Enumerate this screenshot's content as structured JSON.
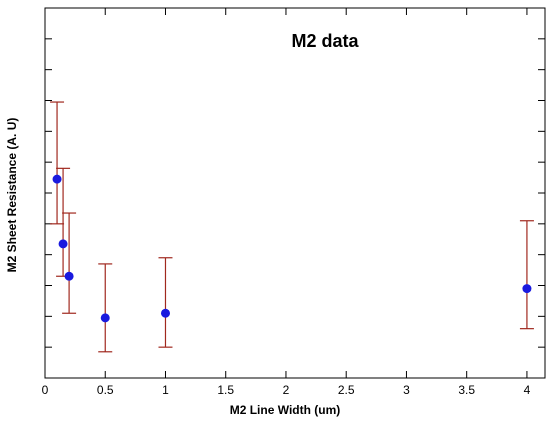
{
  "chart_data": {
    "type": "scatter",
    "title": "M2 data",
    "xlabel": "M2 Line Width (um)",
    "ylabel": "M2 Sheet Resistance (A. U)",
    "xlim": [
      0,
      4.15
    ],
    "ylim": [
      0,
      12
    ],
    "x_ticks": [
      0,
      0.5,
      1,
      1.5,
      2,
      2.5,
      3,
      3.5,
      4
    ],
    "x_tick_labels": [
      "0",
      "0.5",
      "1",
      "1.5",
      "2",
      "2.5",
      "3",
      "3.5",
      "4"
    ],
    "y_ticks": [
      1,
      2,
      3,
      4,
      5,
      6,
      7,
      8,
      9,
      10,
      11
    ],
    "grid": false,
    "colors": {
      "marker": "#1a1adf",
      "error_bar": "#a0281e",
      "axis": "#000000"
    },
    "points": [
      {
        "x": 0.1,
        "y": 6.45,
        "err_low": 5.0,
        "err_high": 8.95
      },
      {
        "x": 0.15,
        "y": 4.35,
        "err_low": 3.3,
        "err_high": 6.8
      },
      {
        "x": 0.2,
        "y": 3.3,
        "err_low": 2.1,
        "err_high": 5.35
      },
      {
        "x": 0.5,
        "y": 1.95,
        "err_low": 0.85,
        "err_high": 3.7
      },
      {
        "x": 1.0,
        "y": 2.1,
        "err_low": 1.0,
        "err_high": 3.9
      },
      {
        "x": 4.0,
        "y": 2.9,
        "err_low": 1.6,
        "err_high": 5.1
      }
    ]
  }
}
